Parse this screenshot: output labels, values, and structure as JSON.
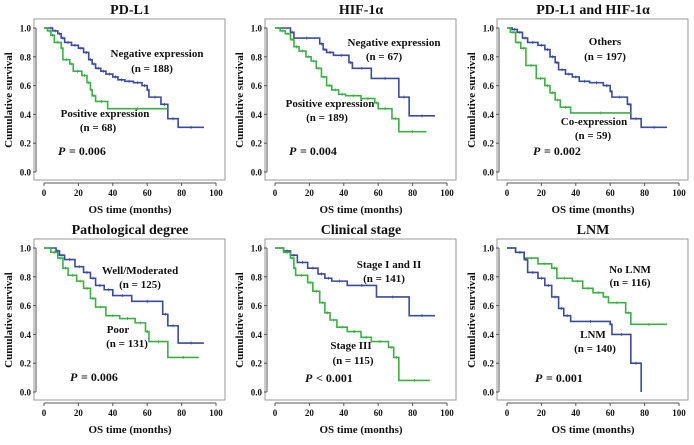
{
  "chart_data": [
    {
      "type": "line",
      "step": true,
      "title": "PD-L1",
      "xlabel": "OS time (months)",
      "ylabel": "Cumulative survival",
      "xlim": [
        0,
        100
      ],
      "ylim": [
        0,
        1.0
      ],
      "xticks": [
        "0",
        "20",
        "40",
        "60",
        "80",
        "100"
      ],
      "yticks": [
        "0.0",
        "0.2",
        "0.4",
        "0.6",
        "0.8",
        "1.0"
      ],
      "grid": false,
      "p_label": "P",
      "p_value": "= 0.006",
      "series": [
        {
          "name": "Negative expression",
          "n_label": "(n = 188)",
          "color": "#3b4b9c",
          "points": [
            [
              0,
              1
            ],
            [
              3,
              1
            ],
            [
              5,
              0.98
            ],
            [
              8,
              0.96
            ],
            [
              10,
              0.93
            ],
            [
              12,
              0.9
            ],
            [
              16,
              0.88
            ],
            [
              20,
              0.86
            ],
            [
              23,
              0.83
            ],
            [
              26,
              0.78
            ],
            [
              28,
              0.75
            ],
            [
              30,
              0.72
            ],
            [
              33,
              0.7
            ],
            [
              36,
              0.68
            ],
            [
              40,
              0.66
            ],
            [
              43,
              0.64
            ],
            [
              47,
              0.63
            ],
            [
              52,
              0.62
            ],
            [
              57,
              0.6
            ],
            [
              60,
              0.57
            ],
            [
              61,
              0.52
            ],
            [
              68,
              0.47
            ],
            [
              72,
              0.37
            ],
            [
              78,
              0.31
            ],
            [
              93,
              0.31
            ]
          ]
        },
        {
          "name": "Positive expression",
          "n_label": "(n = 68)",
          "color": "#3daf46",
          "points": [
            [
              0,
              1
            ],
            [
              2,
              0.98
            ],
            [
              4,
              0.95
            ],
            [
              6,
              0.9
            ],
            [
              10,
              0.86
            ],
            [
              11,
              0.78
            ],
            [
              15,
              0.75
            ],
            [
              17,
              0.7
            ],
            [
              22,
              0.67
            ],
            [
              25,
              0.62
            ],
            [
              27,
              0.57
            ],
            [
              28,
              0.53
            ],
            [
              30,
              0.49
            ],
            [
              37,
              0.44
            ],
            [
              72,
              0.44
            ]
          ]
        }
      ]
    },
    {
      "type": "line",
      "step": true,
      "title": "HIF-1α",
      "xlabel": "OS time (months)",
      "ylabel": "Cumulative survival",
      "xlim": [
        0,
        100
      ],
      "ylim": [
        0,
        1.0
      ],
      "xticks": [
        "0",
        "20",
        "40",
        "60",
        "80",
        "100"
      ],
      "yticks": [
        "0.0",
        "0.2",
        "0.4",
        "0.6",
        "0.8",
        "1.0"
      ],
      "grid": false,
      "p_label": "P",
      "p_value": "= 0.004",
      "series": [
        {
          "name": "Negative expression",
          "n_label": "(n = 67)",
          "color": "#3b4b9c",
          "points": [
            [
              0,
              1
            ],
            [
              9,
              0.97
            ],
            [
              11,
              0.93
            ],
            [
              26,
              0.89
            ],
            [
              28,
              0.85
            ],
            [
              30,
              0.83
            ],
            [
              34,
              0.81
            ],
            [
              43,
              0.76
            ],
            [
              45,
              0.72
            ],
            [
              56,
              0.65
            ],
            [
              72,
              0.52
            ],
            [
              78,
              0.39
            ],
            [
              93,
              0.39
            ]
          ]
        },
        {
          "name": "Positive expression",
          "n_label": "(n = 189)",
          "color": "#3daf46",
          "points": [
            [
              0,
              1
            ],
            [
              3,
              0.98
            ],
            [
              6,
              0.96
            ],
            [
              9,
              0.92
            ],
            [
              11,
              0.87
            ],
            [
              14,
              0.84
            ],
            [
              18,
              0.8
            ],
            [
              21,
              0.77
            ],
            [
              24,
              0.72
            ],
            [
              27,
              0.66
            ],
            [
              30,
              0.6
            ],
            [
              33,
              0.57
            ],
            [
              37,
              0.54
            ],
            [
              41,
              0.53
            ],
            [
              50,
              0.51
            ],
            [
              58,
              0.48
            ],
            [
              60,
              0.44
            ],
            [
              68,
              0.37
            ],
            [
              72,
              0.28
            ],
            [
              88,
              0.28
            ]
          ]
        }
      ]
    },
    {
      "type": "line",
      "step": true,
      "title": "PD-L1 and HIF-1α",
      "xlabel": "OS time (months)",
      "ylabel": "Cumulative survival",
      "xlim": [
        0,
        100
      ],
      "ylim": [
        0,
        1.0
      ],
      "xticks": [
        "0",
        "20",
        "40",
        "60",
        "80",
        "100"
      ],
      "yticks": [
        "0.0",
        "0.2",
        "0.4",
        "0.6",
        "0.8",
        "1.0"
      ],
      "grid": false,
      "p_label": "P",
      "p_value": "= 0.002",
      "series": [
        {
          "name": "Others",
          "n_label": "(n = 197)",
          "color": "#3b4b9c",
          "points": [
            [
              0,
              1
            ],
            [
              3,
              0.99
            ],
            [
              6,
              0.97
            ],
            [
              9,
              0.93
            ],
            [
              12,
              0.9
            ],
            [
              18,
              0.88
            ],
            [
              22,
              0.85
            ],
            [
              25,
              0.8
            ],
            [
              28,
              0.76
            ],
            [
              30,
              0.71
            ],
            [
              34,
              0.68
            ],
            [
              38,
              0.66
            ],
            [
              42,
              0.63
            ],
            [
              48,
              0.62
            ],
            [
              56,
              0.6
            ],
            [
              60,
              0.56
            ],
            [
              61,
              0.52
            ],
            [
              70,
              0.47
            ],
            [
              72,
              0.37
            ],
            [
              78,
              0.31
            ],
            [
              93,
              0.31
            ]
          ]
        },
        {
          "name": "Co-expression",
          "n_label": "(n = 59)",
          "color": "#3daf46",
          "points": [
            [
              0,
              1
            ],
            [
              2,
              0.97
            ],
            [
              5,
              0.9
            ],
            [
              8,
              0.86
            ],
            [
              11,
              0.74
            ],
            [
              17,
              0.65
            ],
            [
              22,
              0.6
            ],
            [
              25,
              0.55
            ],
            [
              28,
              0.5
            ],
            [
              31,
              0.45
            ],
            [
              37,
              0.41
            ],
            [
              72,
              0.41
            ]
          ]
        }
      ]
    },
    {
      "type": "line",
      "step": true,
      "title": "Pathological degree",
      "xlabel": "OS time (months)",
      "ylabel": "Cumulative survival",
      "xlim": [
        0,
        100
      ],
      "ylim": [
        0,
        1.0
      ],
      "xticks": [
        "0",
        "20",
        "40",
        "60",
        "80",
        "100"
      ],
      "yticks": [
        "0.0",
        "0.2",
        "0.4",
        "0.6",
        "0.8",
        "1.0"
      ],
      "grid": false,
      "p_label": "P",
      "p_value": "= 0.006",
      "series": [
        {
          "name": "Well/Moderated",
          "n_label": "(n = 125)",
          "color": "#3b4b9c",
          "points": [
            [
              0,
              1
            ],
            [
              7,
              0.98
            ],
            [
              9,
              0.95
            ],
            [
              12,
              0.92
            ],
            [
              18,
              0.87
            ],
            [
              23,
              0.83
            ],
            [
              27,
              0.79
            ],
            [
              30,
              0.74
            ],
            [
              35,
              0.71
            ],
            [
              40,
              0.67
            ],
            [
              51,
              0.63
            ],
            [
              69,
              0.54
            ],
            [
              72,
              0.46
            ],
            [
              78,
              0.34
            ],
            [
              93,
              0.34
            ]
          ]
        },
        {
          "name": "Poor",
          "n_label": "(n = 131)",
          "color": "#3daf46",
          "points": [
            [
              0,
              1
            ],
            [
              4,
              0.97
            ],
            [
              8,
              0.93
            ],
            [
              11,
              0.86
            ],
            [
              14,
              0.81
            ],
            [
              19,
              0.77
            ],
            [
              23,
              0.72
            ],
            [
              27,
              0.65
            ],
            [
              30,
              0.59
            ],
            [
              36,
              0.53
            ],
            [
              44,
              0.51
            ],
            [
              53,
              0.48
            ],
            [
              59,
              0.42
            ],
            [
              61,
              0.35
            ],
            [
              72,
              0.24
            ],
            [
              90,
              0.24
            ]
          ]
        }
      ]
    },
    {
      "type": "line",
      "step": true,
      "title": "Clinical stage",
      "xlabel": "OS time (months)",
      "ylabel": "Cumulative survival",
      "xlim": [
        0,
        100
      ],
      "ylim": [
        0,
        1.0
      ],
      "xticks": [
        "0",
        "20",
        "40",
        "60",
        "80",
        "100"
      ],
      "yticks": [
        "0.0",
        "0.2",
        "0.4",
        "0.6",
        "0.8",
        "1.0"
      ],
      "grid": false,
      "p_label": "P",
      "p_value": "< 0.001",
      "series": [
        {
          "name": "Stage I  and  II",
          "n_label": "(n = 141)",
          "color": "#3b4b9c",
          "points": [
            [
              0,
              1
            ],
            [
              5,
              0.98
            ],
            [
              9,
              0.95
            ],
            [
              13,
              0.9
            ],
            [
              19,
              0.86
            ],
            [
              25,
              0.82
            ],
            [
              29,
              0.79
            ],
            [
              33,
              0.77
            ],
            [
              42,
              0.74
            ],
            [
              59,
              0.66
            ],
            [
              78,
              0.53
            ],
            [
              93,
              0.53
            ]
          ]
        },
        {
          "name": "Stage III",
          "n_label": "(n = 115)",
          "color": "#3daf46",
          "points": [
            [
              0,
              1
            ],
            [
              5,
              0.97
            ],
            [
              9,
              0.93
            ],
            [
              11,
              0.86
            ],
            [
              12,
              0.81
            ],
            [
              19,
              0.76
            ],
            [
              22,
              0.7
            ],
            [
              26,
              0.62
            ],
            [
              29,
              0.55
            ],
            [
              32,
              0.5
            ],
            [
              36,
              0.45
            ],
            [
              42,
              0.42
            ],
            [
              50,
              0.38
            ],
            [
              56,
              0.35
            ],
            [
              66,
              0.31
            ],
            [
              69,
              0.24
            ],
            [
              72,
              0.08
            ],
            [
              90,
              0.08
            ]
          ]
        }
      ]
    },
    {
      "type": "line",
      "step": true,
      "title": "LNM",
      "xlabel": "OS time (months)",
      "ylabel": "Cumulative survival",
      "xlim": [
        0,
        100
      ],
      "ylim": [
        0,
        1.0
      ],
      "xticks": [
        "0",
        "20",
        "40",
        "60",
        "80",
        "100"
      ],
      "yticks": [
        "0.0",
        "0.2",
        "0.4",
        "0.6",
        "0.8",
        "1.0"
      ],
      "grid": false,
      "p_label": "P",
      "p_value": "= 0.001",
      "series": [
        {
          "name": "No LNM",
          "n_label": "(n = 116)",
          "color": "#3daf46",
          "points": [
            [
              0,
              1
            ],
            [
              5,
              0.97
            ],
            [
              10,
              0.93
            ],
            [
              18,
              0.89
            ],
            [
              26,
              0.86
            ],
            [
              29,
              0.79
            ],
            [
              38,
              0.77
            ],
            [
              44,
              0.72
            ],
            [
              50,
              0.69
            ],
            [
              56,
              0.66
            ],
            [
              59,
              0.62
            ],
            [
              69,
              0.55
            ],
            [
              72,
              0.47
            ],
            [
              93,
              0.47
            ]
          ]
        },
        {
          "name": "LNM",
          "n_label": "(n = 140)",
          "color": "#3b4b9c",
          "points": [
            [
              0,
              1
            ],
            [
              5,
              0.97
            ],
            [
              10,
              0.92
            ],
            [
              12,
              0.83
            ],
            [
              18,
              0.79
            ],
            [
              22,
              0.74
            ],
            [
              26,
              0.66
            ],
            [
              30,
              0.58
            ],
            [
              33,
              0.53
            ],
            [
              37,
              0.49
            ],
            [
              60,
              0.47
            ],
            [
              61,
              0.4
            ],
            [
              72,
              0.2
            ],
            [
              78,
              0
            ]
          ]
        }
      ]
    }
  ]
}
